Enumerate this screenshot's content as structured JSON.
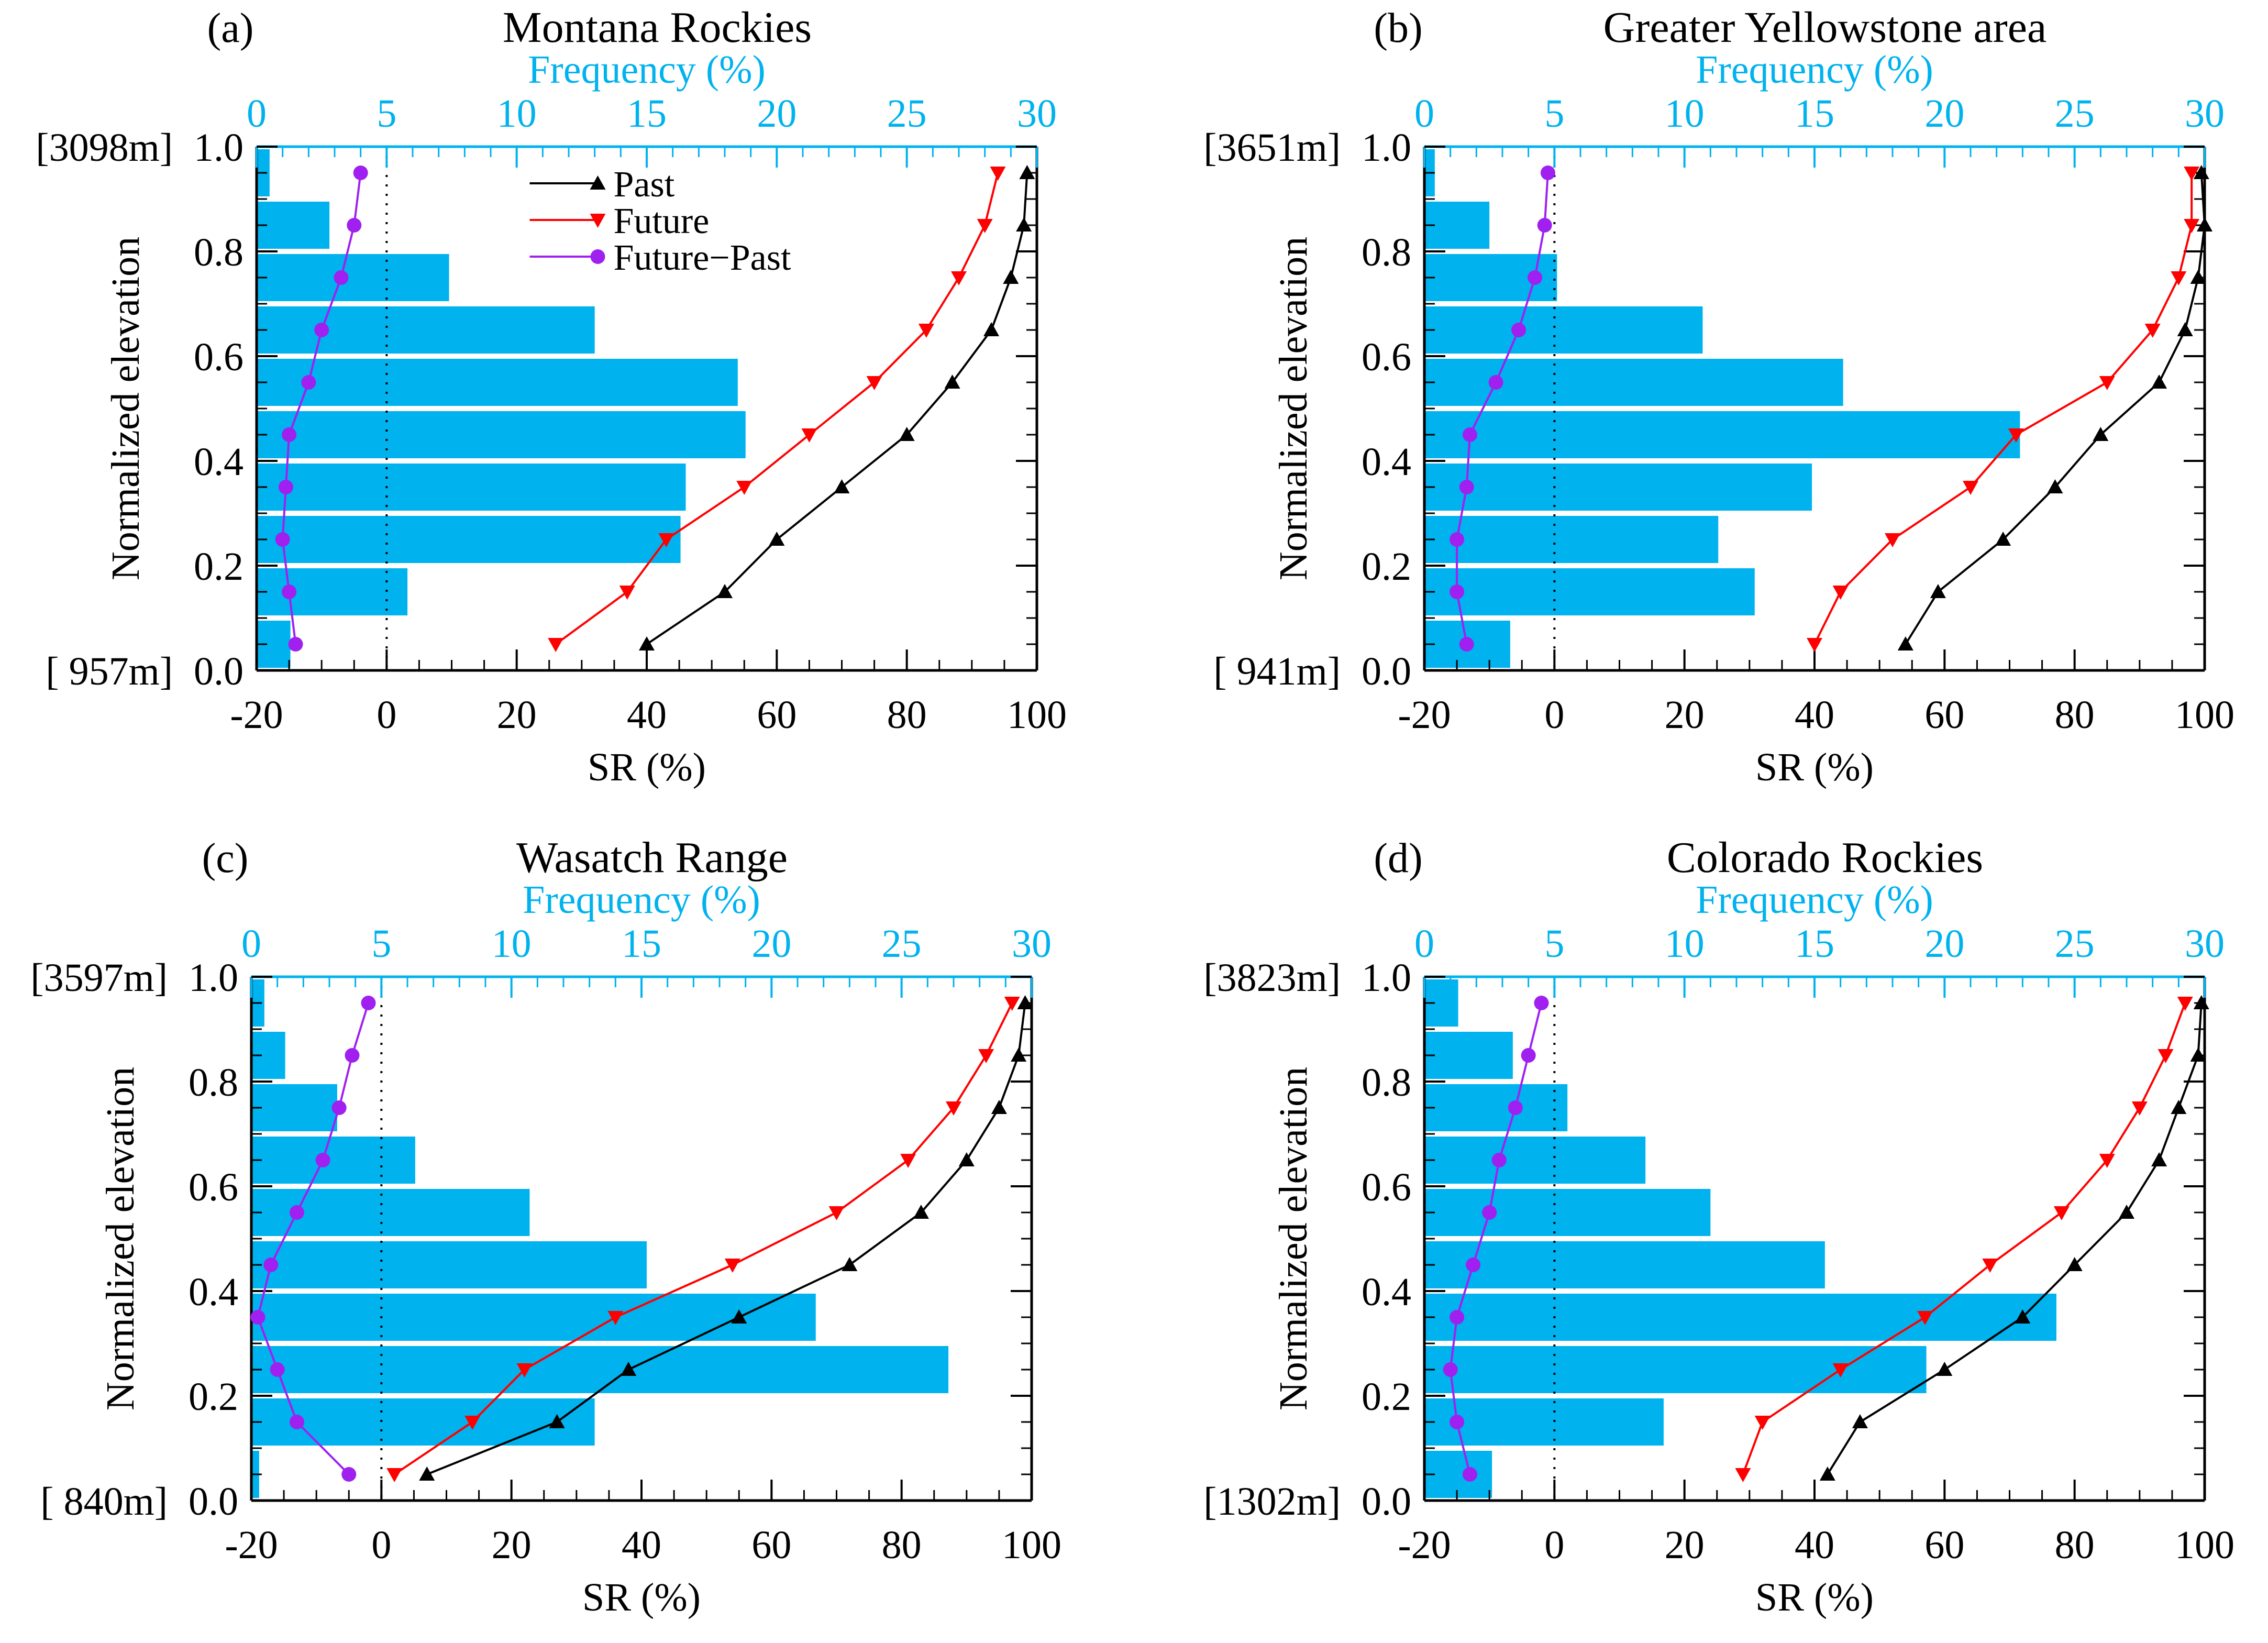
{
  "figure": {
    "colors": {
      "bar": "#00B2EE",
      "past": "#000000",
      "future": "#FF0000",
      "diff": "#A020F0",
      "top_axis": "#00B2EE"
    }
  },
  "chart_data": [
    {
      "type": "bar",
      "panel": "(a)",
      "title": "Montana Rockies",
      "xlabel": "SR (%)",
      "ylabel": "Normalized elevation",
      "xlabel_top": "Frequency (%)",
      "xlim": [
        -20,
        100
      ],
      "xticks": [
        "-20",
        "0",
        "20",
        "40",
        "60",
        "80",
        "100"
      ],
      "ylim": [
        0,
        1
      ],
      "yticks": [
        "0.0",
        "0.2",
        "0.4",
        "0.6",
        "0.8",
        "1.0"
      ],
      "top_xlim": [
        0,
        30
      ],
      "top_xticks": [
        "0",
        "5",
        "10",
        "15",
        "20",
        "25",
        "30"
      ],
      "elev_top": "[3098m]",
      "elev_bottom": "[ 957m]",
      "y_bins": [
        0.05,
        0.15,
        0.25,
        0.35,
        0.45,
        0.55,
        0.65,
        0.75,
        0.85,
        0.95
      ],
      "frequency": [
        1.3,
        5.8,
        16.3,
        16.5,
        18.8,
        18.5,
        13.0,
        7.4,
        2.8,
        0.5
      ],
      "series": [
        {
          "name": "Past",
          "values": [
            40,
            52,
            60,
            70,
            80,
            87,
            93,
            96,
            98,
            98.5
          ]
        },
        {
          "name": "Future",
          "values": [
            26,
            37,
            43,
            55,
            65,
            75,
            83,
            88,
            92,
            94
          ]
        },
        {
          "name": "Future−Past",
          "values": [
            -14,
            -15,
            -16,
            -15.5,
            -15,
            -12,
            -10,
            -7,
            -5,
            -4
          ]
        }
      ],
      "legend": "top-center"
    },
    {
      "type": "bar",
      "panel": "(b)",
      "title": "Greater Yellowstone area",
      "xlabel": "SR (%)",
      "ylabel": "Normalized elevation",
      "xlabel_top": "Frequency (%)",
      "xlim": [
        -20,
        100
      ],
      "xticks": [
        "-20",
        "0",
        "20",
        "40",
        "60",
        "80",
        "100"
      ],
      "ylim": [
        0,
        1
      ],
      "yticks": [
        "0.0",
        "0.2",
        "0.4",
        "0.6",
        "0.8",
        "1.0"
      ],
      "top_xlim": [
        0,
        30
      ],
      "top_xticks": [
        "0",
        "5",
        "10",
        "15",
        "20",
        "25",
        "30"
      ],
      "elev_top": "[3651m]",
      "elev_bottom": "[ 941m]",
      "y_bins": [
        0.05,
        0.15,
        0.25,
        0.35,
        0.45,
        0.55,
        0.65,
        0.75,
        0.85,
        0.95
      ],
      "frequency": [
        3.3,
        12.7,
        11.3,
        14.9,
        22.9,
        16.1,
        10.7,
        5.1,
        2.5,
        0.4
      ],
      "series": [
        {
          "name": "Past",
          "values": [
            54,
            59,
            69,
            77,
            84,
            93,
            97,
            99,
            100,
            99.5
          ]
        },
        {
          "name": "Future",
          "values": [
            40,
            44,
            52,
            64,
            71,
            85,
            92,
            96,
            98,
            98
          ]
        },
        {
          "name": "Future−Past",
          "values": [
            -13.5,
            -15,
            -15,
            -13.5,
            -13,
            -9,
            -5.5,
            -3,
            -1.5,
            -1
          ]
        }
      ]
    },
    {
      "type": "bar",
      "panel": "(c)",
      "title": "Wasatch Range",
      "xlabel": "SR (%)",
      "ylabel": "Normalized elevation",
      "xlabel_top": "Frequency (%)",
      "xlim": [
        -20,
        100
      ],
      "xticks": [
        "-20",
        "0",
        "20",
        "40",
        "60",
        "80",
        "100"
      ],
      "ylim": [
        0,
        1
      ],
      "yticks": [
        "0.0",
        "0.2",
        "0.4",
        "0.6",
        "0.8",
        "1.0"
      ],
      "top_xlim": [
        0,
        30
      ],
      "top_xticks": [
        "0",
        "5",
        "10",
        "15",
        "20",
        "25",
        "30"
      ],
      "elev_top": "[3597m]",
      "elev_bottom": "[ 840m]",
      "y_bins": [
        0.05,
        0.15,
        0.25,
        0.35,
        0.45,
        0.55,
        0.65,
        0.75,
        0.85,
        0.95
      ],
      "frequency": [
        0.3,
        13.2,
        26.8,
        21.7,
        15.2,
        10.7,
        6.3,
        3.3,
        1.3,
        0.5
      ],
      "series": [
        {
          "name": "Past",
          "values": [
            7,
            27,
            38,
            55,
            72,
            83,
            90,
            95,
            98,
            99
          ]
        },
        {
          "name": "Future",
          "values": [
            2,
            14,
            22,
            36,
            54,
            70,
            81,
            88,
            93,
            97
          ]
        },
        {
          "name": "Future−Past",
          "values": [
            -5,
            -13,
            -16,
            -19,
            -17,
            -13,
            -9,
            -6.5,
            -4.5,
            -2
          ]
        }
      ]
    },
    {
      "type": "bar",
      "panel": "(d)",
      "title": "Colorado Rockies",
      "xlabel": "SR (%)",
      "ylabel": "Normalized elevation",
      "xlabel_top": "Frequency (%)",
      "xlim": [
        -20,
        100
      ],
      "xticks": [
        "-20",
        "0",
        "20",
        "40",
        "60",
        "80",
        "100"
      ],
      "ylim": [
        0,
        1
      ],
      "yticks": [
        "0.0",
        "0.2",
        "0.4",
        "0.6",
        "0.8",
        "1.0"
      ],
      "top_xlim": [
        0,
        30
      ],
      "top_xticks": [
        "0",
        "5",
        "10",
        "15",
        "20",
        "25",
        "30"
      ],
      "elev_top": "[3823m]",
      "elev_bottom": "[1302m]",
      "y_bins": [
        0.05,
        0.15,
        0.25,
        0.35,
        0.45,
        0.55,
        0.65,
        0.75,
        0.85,
        0.95
      ],
      "frequency": [
        2.6,
        9.2,
        19.3,
        24.3,
        15.4,
        11.0,
        8.5,
        5.5,
        3.4,
        1.3
      ],
      "series": [
        {
          "name": "Past",
          "values": [
            42,
            47,
            60,
            72,
            80,
            88,
            93,
            96,
            99,
            99.5
          ]
        },
        {
          "name": "Future",
          "values": [
            29,
            32,
            44,
            57,
            67,
            78,
            85,
            90,
            94,
            97
          ]
        },
        {
          "name": "Future−Past",
          "values": [
            -13,
            -15,
            -16,
            -15,
            -12.5,
            -10,
            -8.5,
            -6,
            -4,
            -2
          ]
        }
      ]
    }
  ]
}
